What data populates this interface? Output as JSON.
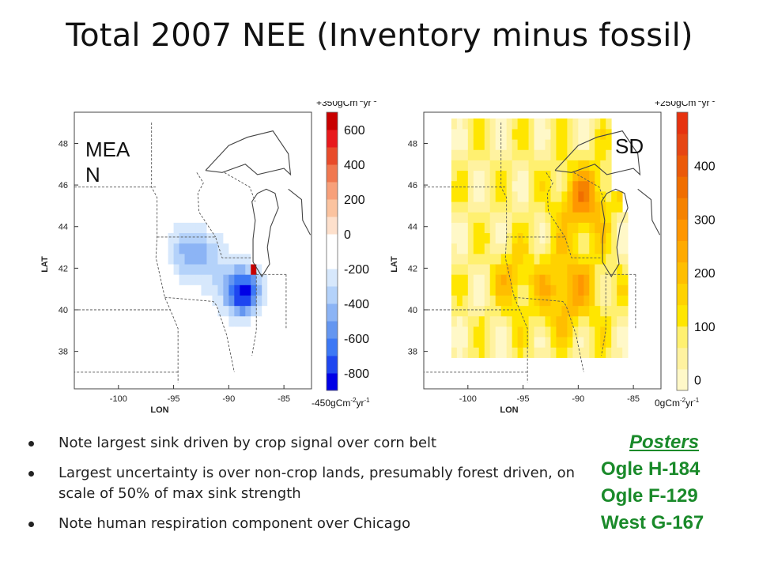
{
  "slide": {
    "title": "Total 2007 NEE (Inventory minus fossil)",
    "bullets": [
      "Note largest sink driven by crop signal over corn belt",
      "Largest uncertainty is over non-crop lands, presumably forest driven, on scale of 50% of max sink strength",
      "Note human respiration component over Chicago"
    ],
    "posters": {
      "heading": "Posters",
      "items": [
        "Ogle H-184",
        "Ogle F-129",
        "West G-167"
      ]
    }
  },
  "chart_data": [
    {
      "type": "heatmap",
      "panel_label": "MEA\nN",
      "xlabel": "LON",
      "ylabel": "LAT",
      "xticks": [
        -100,
        -95,
        -90,
        -85
      ],
      "yticks": [
        38,
        40,
        42,
        44,
        46,
        48
      ],
      "xlim": [
        -104,
        -82.5
      ],
      "ylim": [
        36.2,
        49.5
      ],
      "colorbar": {
        "ticks": [
          600,
          400,
          200,
          0,
          -200,
          -400,
          -600,
          -800
        ],
        "range": [
          -900,
          700
        ],
        "top_note": "+350gCm-2yr-1",
        "bottom_note": "-450gCm-2yr-1",
        "colors": [
          "#0000e6",
          "#1e46f0",
          "#3c78f5",
          "#6496f0",
          "#8cb4f5",
          "#b4d2fa",
          "#d7e8fc",
          "#ffffff",
          "#ffffff",
          "#fde0cc",
          "#fbc39f",
          "#f7a07a",
          "#f07850",
          "#e84b2a",
          "#e8191c",
          "#c80000"
        ],
        "grid": false
      },
      "source": "mean"
    },
    {
      "type": "heatmap",
      "panel_label": "SD",
      "xlabel": "LON",
      "ylabel": "LAT",
      "xticks": [
        -100,
        -95,
        -90,
        -85
      ],
      "yticks": [
        38,
        40,
        42,
        44,
        46,
        48
      ],
      "xlim": [
        -104,
        -82.5
      ],
      "ylim": [
        36.2,
        49.5
      ],
      "colorbar": {
        "ticks": [
          400,
          300,
          200,
          100,
          0
        ],
        "range": [
          -20,
          500
        ],
        "top_note": "+250gCm-2yr-1",
        "bottom_note": "0gCm-2yr-1",
        "colors": [
          "#fff8c8",
          "#fff2a0",
          "#fff070",
          "#ffe600",
          "#ffd200",
          "#ffbe00",
          "#ffaa00",
          "#ff9600",
          "#f58200",
          "#f06e00",
          "#eb5a0a",
          "#e64614",
          "#e6320f"
        ],
        "grid": false
      },
      "source": "sd"
    }
  ]
}
